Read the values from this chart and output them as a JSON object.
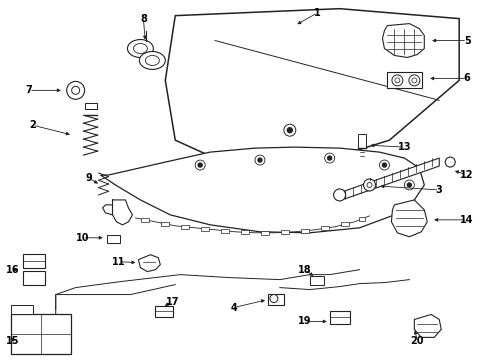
{
  "background": "#ffffff",
  "line_color": "#222222",
  "figsize": [
    4.89,
    3.6
  ],
  "dpi": 100
}
